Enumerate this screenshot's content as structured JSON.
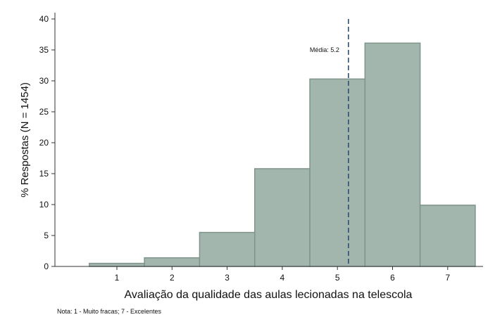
{
  "chart_data": {
    "type": "bar",
    "categories": [
      "1",
      "2",
      "3",
      "4",
      "5",
      "6",
      "7"
    ],
    "values": [
      0.5,
      1.4,
      5.5,
      15.8,
      30.3,
      36.1,
      9.9
    ],
    "xlabel": "Avaliação da qualidade das aulas lecionadas na telescola",
    "ylabel": "% Respostas (N = 1454)",
    "ylim": [
      0,
      40
    ],
    "yticks": [
      "0",
      "5",
      "10",
      "15",
      "20",
      "25",
      "30",
      "35",
      "40"
    ],
    "grid": false,
    "mean_line": {
      "value": 5.2,
      "label": "Média: 5.2"
    },
    "note": "Nota: 1 - Muito fracas; 7 - Excelentes",
    "colors": {
      "bar_fill": "#a3b6ad",
      "bar_stroke": "#7f948b",
      "mean_line": "#2f4f6e"
    }
  }
}
